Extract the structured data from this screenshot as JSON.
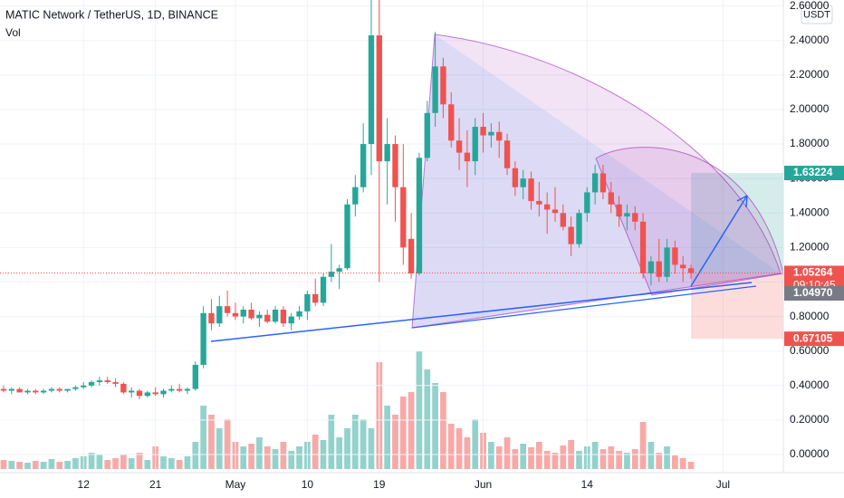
{
  "chart_data": {
    "type": "candlestick",
    "title": "MATIC Network / TetherUS, 1D, BINANCE",
    "volume_label": "Vol",
    "currency": "USDT",
    "countdown": "09:10:45",
    "up_color": "#26a69a",
    "down_color": "#ef5350",
    "volume_colors": {
      "up": "#93d2cc",
      "down": "#f7a9a7"
    },
    "ylim": [
      -0.105,
      2.635
    ],
    "yticks": [
      {
        "value": 0,
        "label": "0.00000"
      },
      {
        "value": 0.2,
        "label": "0.20000"
      },
      {
        "value": 0.4,
        "label": "0.40000"
      },
      {
        "value": 0.6,
        "label": "0.60000"
      },
      {
        "value": 0.8,
        "label": "0.80000"
      },
      {
        "value": 1.0,
        "label": "1.00000"
      },
      {
        "value": 1.2,
        "label": "1.20000"
      },
      {
        "value": 1.4,
        "label": "1.40000"
      },
      {
        "value": 1.6,
        "label": "1.60000"
      },
      {
        "value": 1.8,
        "label": "1.80000"
      },
      {
        "value": 2.0,
        "label": "2.00000"
      },
      {
        "value": 2.2,
        "label": "2.20000"
      },
      {
        "value": 2.4,
        "label": "2.40000"
      },
      {
        "value": 2.6,
        "label": "2.60000"
      }
    ],
    "categories": [
      null,
      null,
      null,
      null,
      null,
      null,
      null,
      null,
      null,
      null,
      "12",
      null,
      null,
      null,
      null,
      null,
      null,
      null,
      null,
      "21",
      null,
      null,
      null,
      null,
      null,
      null,
      null,
      null,
      null,
      "May",
      null,
      null,
      null,
      null,
      null,
      null,
      null,
      null,
      "10",
      null,
      null,
      null,
      null,
      null,
      null,
      null,
      null,
      "19",
      null,
      null,
      null,
      null,
      null,
      null,
      null,
      null,
      null,
      null,
      null,
      null,
      "Jun",
      null,
      null,
      null,
      null,
      null,
      null,
      null,
      null,
      null,
      null,
      null,
      null,
      "14",
      null,
      null,
      null,
      null,
      null,
      null,
      null,
      null,
      null,
      null,
      null,
      null,
      null,
      null,
      null,
      null,
      "Jul",
      null,
      null,
      null,
      null,
      null,
      null,
      null
    ],
    "ohlc": [
      [
        0.38,
        0.4,
        0.36,
        0.37
      ],
      [
        0.37,
        0.39,
        0.35,
        0.38
      ],
      [
        0.38,
        0.39,
        0.36,
        0.36
      ],
      [
        0.36,
        0.38,
        0.35,
        0.37
      ],
      [
        0.37,
        0.38,
        0.35,
        0.36
      ],
      [
        0.36,
        0.38,
        0.35,
        0.37
      ],
      [
        0.37,
        0.39,
        0.36,
        0.38
      ],
      [
        0.38,
        0.39,
        0.36,
        0.37
      ],
      [
        0.37,
        0.38,
        0.36,
        0.38
      ],
      [
        0.38,
        0.4,
        0.37,
        0.39
      ],
      [
        0.39,
        0.42,
        0.38,
        0.4
      ],
      [
        0.4,
        0.43,
        0.39,
        0.42
      ],
      [
        0.42,
        0.45,
        0.4,
        0.43
      ],
      [
        0.43,
        0.45,
        0.41,
        0.42
      ],
      [
        0.42,
        0.44,
        0.39,
        0.41
      ],
      [
        0.41,
        0.42,
        0.35,
        0.36
      ],
      [
        0.36,
        0.39,
        0.33,
        0.37
      ],
      [
        0.37,
        0.38,
        0.32,
        0.34
      ],
      [
        0.34,
        0.37,
        0.33,
        0.36
      ],
      [
        0.36,
        0.39,
        0.34,
        0.35
      ],
      [
        0.35,
        0.38,
        0.33,
        0.37
      ],
      [
        0.37,
        0.4,
        0.36,
        0.38
      ],
      [
        0.38,
        0.41,
        0.36,
        0.37
      ],
      [
        0.37,
        0.39,
        0.35,
        0.38
      ],
      [
        0.38,
        0.54,
        0.37,
        0.52
      ],
      [
        0.52,
        0.86,
        0.5,
        0.82
      ],
      [
        0.82,
        0.9,
        0.72,
        0.76
      ],
      [
        0.76,
        0.92,
        0.74,
        0.86
      ],
      [
        0.86,
        0.95,
        0.8,
        0.82
      ],
      [
        0.82,
        0.88,
        0.78,
        0.8
      ],
      [
        0.8,
        0.86,
        0.76,
        0.84
      ],
      [
        0.84,
        0.88,
        0.78,
        0.79
      ],
      [
        0.79,
        0.83,
        0.74,
        0.81
      ],
      [
        0.81,
        0.84,
        0.76,
        0.77
      ],
      [
        0.77,
        0.86,
        0.76,
        0.84
      ],
      [
        0.84,
        0.86,
        0.74,
        0.76
      ],
      [
        0.76,
        0.82,
        0.72,
        0.8
      ],
      [
        0.8,
        0.86,
        0.78,
        0.83
      ],
      [
        0.83,
        0.95,
        0.78,
        0.93
      ],
      [
        0.93,
        1.02,
        0.86,
        0.88
      ],
      [
        0.88,
        1.05,
        0.86,
        1.03
      ],
      [
        1.03,
        1.22,
        1.0,
        1.06
      ],
      [
        1.06,
        1.1,
        0.96,
        1.08
      ],
      [
        1.08,
        1.48,
        1.07,
        1.45
      ],
      [
        1.45,
        1.62,
        1.38,
        1.55
      ],
      [
        1.55,
        1.92,
        1.52,
        1.8
      ],
      [
        1.8,
        2.7,
        1.62,
        2.43
      ],
      [
        2.43,
        2.65,
        1.0,
        1.7
      ],
      [
        1.7,
        1.95,
        1.45,
        1.8
      ],
      [
        1.8,
        1.85,
        1.35,
        1.55
      ],
      [
        1.55,
        1.8,
        1.1,
        1.2
      ],
      [
        1.25,
        1.4,
        1.02,
        1.05
      ],
      [
        1.05,
        1.75,
        1.04,
        1.72
      ],
      [
        1.72,
        2.05,
        1.7,
        1.98
      ],
      [
        1.98,
        2.45,
        1.9,
        2.25
      ],
      [
        2.25,
        2.3,
        1.95,
        2.03
      ],
      [
        2.03,
        2.1,
        1.78,
        1.82
      ],
      [
        1.82,
        1.95,
        1.65,
        1.75
      ],
      [
        1.75,
        1.88,
        1.55,
        1.7
      ],
      [
        1.7,
        1.95,
        1.62,
        1.9
      ],
      [
        1.9,
        1.98,
        1.75,
        1.85
      ],
      [
        1.85,
        1.92,
        1.78,
        1.87
      ],
      [
        1.87,
        1.93,
        1.72,
        1.82
      ],
      [
        1.82,
        1.86,
        1.62,
        1.66
      ],
      [
        1.66,
        1.7,
        1.5,
        1.55
      ],
      [
        1.55,
        1.65,
        1.48,
        1.6
      ],
      [
        1.6,
        1.64,
        1.42,
        1.47
      ],
      [
        1.47,
        1.58,
        1.38,
        1.45
      ],
      [
        1.45,
        1.52,
        1.28,
        1.42
      ],
      [
        1.42,
        1.55,
        1.35,
        1.4
      ],
      [
        1.4,
        1.45,
        1.3,
        1.32
      ],
      [
        1.32,
        1.38,
        1.15,
        1.22
      ],
      [
        1.22,
        1.42,
        1.2,
        1.4
      ],
      [
        1.4,
        1.55,
        1.35,
        1.52
      ],
      [
        1.52,
        1.68,
        1.45,
        1.63
      ],
      [
        1.63,
        1.68,
        1.48,
        1.52
      ],
      [
        1.52,
        1.58,
        1.4,
        1.45
      ],
      [
        1.45,
        1.5,
        1.32,
        1.38
      ],
      [
        1.38,
        1.45,
        1.3,
        1.4
      ],
      [
        1.4,
        1.44,
        1.3,
        1.35
      ],
      [
        1.35,
        1.4,
        1.02,
        1.05
      ],
      [
        1.05,
        1.15,
        0.98,
        1.12
      ],
      [
        1.12,
        1.25,
        1.0,
        1.03
      ],
      [
        1.03,
        1.25,
        1.0,
        1.2
      ],
      [
        1.2,
        1.24,
        1.05,
        1.1
      ],
      [
        1.1,
        1.15,
        1.0,
        1.08
      ],
      [
        1.08,
        1.1,
        1.02,
        1.05264
      ],
      null,
      null,
      null,
      null,
      null,
      null,
      null,
      null,
      null,
      null,
      null
    ],
    "volume": [
      10,
      9,
      8,
      7,
      9,
      8,
      11,
      8,
      9,
      12,
      14,
      18,
      16,
      10,
      12,
      16,
      12,
      18,
      10,
      25,
      14,
      12,
      10,
      14,
      30,
      70,
      60,
      45,
      55,
      30,
      25,
      28,
      35,
      25,
      22,
      30,
      20,
      25,
      30,
      38,
      32,
      60,
      35,
      45,
      60,
      55,
      45,
      118,
      70,
      60,
      80,
      85,
      130,
      110,
      95,
      85,
      50,
      45,
      35,
      55,
      40,
      30,
      25,
      35,
      22,
      28,
      24,
      30,
      20,
      18,
      26,
      32,
      20,
      25,
      30,
      22,
      25,
      20,
      18,
      22,
      52,
      30,
      18,
      25,
      15,
      12,
      8,
      null,
      null,
      null,
      null,
      null,
      null,
      null,
      null,
      null,
      null,
      null
    ],
    "position": {
      "target": 1.63224,
      "entry": {
        "value": 1.0497,
        "label": "1.04970"
      },
      "stop": 0.67105
    }
  }
}
